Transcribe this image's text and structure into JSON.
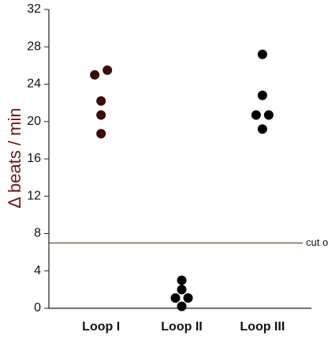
{
  "chart_data": {
    "type": "strip",
    "y_label": "Δ beats / min",
    "ylim": [
      0,
      32
    ],
    "yticks": [
      0,
      4,
      8,
      12,
      16,
      20,
      24,
      28,
      32
    ],
    "groups": [
      {
        "name": "Loop I",
        "color": "#3a0d0d",
        "values": [
          25.0,
          25.5,
          22.2,
          20.7,
          18.7
        ]
      },
      {
        "name": "Loop II",
        "color": "#000000",
        "values": [
          3.0,
          2.0,
          1.1,
          1.1,
          0.2
        ]
      },
      {
        "name": "Loop III",
        "color": "#000000",
        "values": [
          27.2,
          22.8,
          20.7,
          20.7,
          19.2
        ]
      }
    ],
    "reference_line": {
      "value": 7,
      "label": "cut off",
      "color": "#5a1a1a"
    }
  }
}
